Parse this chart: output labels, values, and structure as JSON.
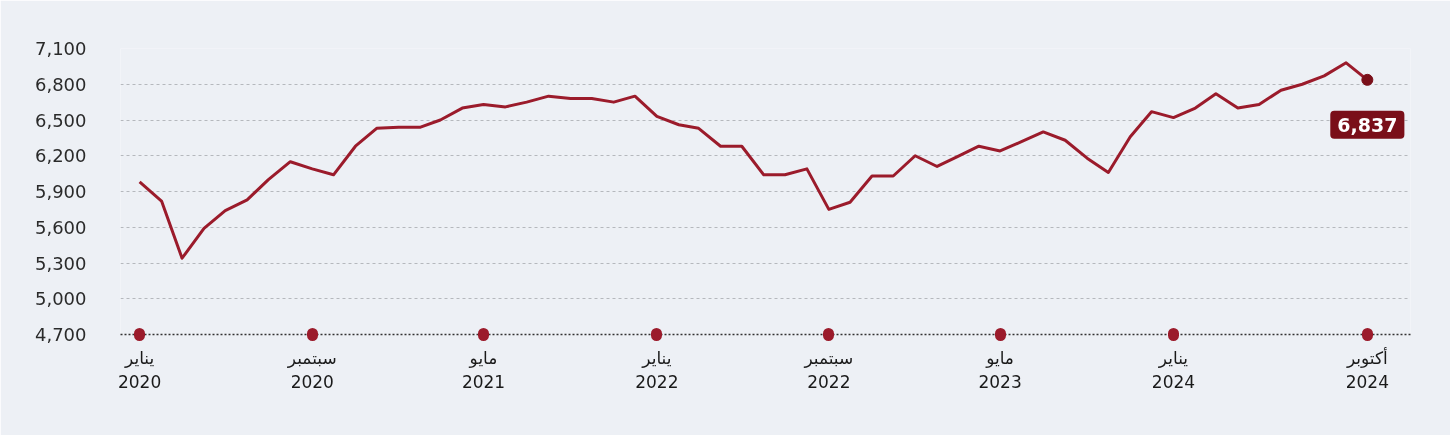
{
  "chart_data": {
    "type": "line",
    "color": "#9b1b2b",
    "x": [
      "2020-01",
      "2020-02",
      "2020-03",
      "2020-04",
      "2020-05",
      "2020-06",
      "2020-07",
      "2020-08",
      "2020-09",
      "2020-10",
      "2020-11",
      "2020-12",
      "2021-01",
      "2021-02",
      "2021-03",
      "2021-04",
      "2021-05",
      "2021-06",
      "2021-07",
      "2021-08",
      "2021-09",
      "2021-10",
      "2021-11",
      "2021-12",
      "2022-01",
      "2022-02",
      "2022-03",
      "2022-04",
      "2022-05",
      "2022-06",
      "2022-07",
      "2022-08",
      "2022-09",
      "2022-10",
      "2022-11",
      "2022-12",
      "2023-01",
      "2023-02",
      "2023-03",
      "2023-04",
      "2023-05",
      "2023-06",
      "2023-07",
      "2023-08",
      "2023-09",
      "2023-10",
      "2023-11",
      "2023-12",
      "2024-01",
      "2024-02",
      "2024-03",
      "2024-04",
      "2024-05",
      "2024-06",
      "2024-07",
      "2024-08",
      "2024-09",
      "2024-10"
    ],
    "values": [
      5980,
      5820,
      5340,
      5590,
      5740,
      5830,
      6000,
      6150,
      6090,
      6040,
      6280,
      6430,
      6440,
      6440,
      6500,
      6600,
      6630,
      6610,
      6650,
      6700,
      6680,
      6680,
      6650,
      6700,
      6530,
      6460,
      6430,
      6280,
      6280,
      6040,
      6040,
      6090,
      5750,
      5810,
      6030,
      6030,
      6200,
      6110,
      6190,
      6280,
      6240,
      6320,
      6400,
      6330,
      6180,
      6060,
      6360,
      6570,
      6520,
      6600,
      6720,
      6600,
      6630,
      6750,
      6800,
      6870,
      6980,
      6837
    ],
    "xlim": [
      "2019-12-05",
      "2024-12-01"
    ],
    "ylim": [
      4700,
      7100
    ],
    "xticks": [
      {
        "value": "2020-01",
        "label": "يناير\n2020"
      },
      {
        "value": "2020-09",
        "label": "سبتمبر\n2020"
      },
      {
        "value": "2021-05",
        "label": "مايو\n2021"
      },
      {
        "value": "2022-01",
        "label": "يناير\n2022"
      },
      {
        "value": "2022-09",
        "label": "سبتمبر\n2022"
      },
      {
        "value": "2023-05",
        "label": "مايو\n2023"
      },
      {
        "value": "2024-01",
        "label": "يناير\n2024"
      },
      {
        "value": "2024-10",
        "label": "أكتوبر\n2024"
      }
    ],
    "yticks": [
      {
        "value": 4700,
        "label": "4,700"
      },
      {
        "value": 5000,
        "label": "5,000"
      },
      {
        "value": 5300,
        "label": "5,300"
      },
      {
        "value": 5600,
        "label": "5,600"
      },
      {
        "value": 5900,
        "label": "5,900"
      },
      {
        "value": 6200,
        "label": "6,200"
      },
      {
        "value": 6500,
        "label": "6,500"
      },
      {
        "value": 6800,
        "label": "6,800"
      },
      {
        "value": 7100,
        "label": "7,100"
      }
    ],
    "grid": "y",
    "annotations": [
      {
        "text": "6,837",
        "x": "2024-10",
        "y": 6837
      }
    ]
  }
}
